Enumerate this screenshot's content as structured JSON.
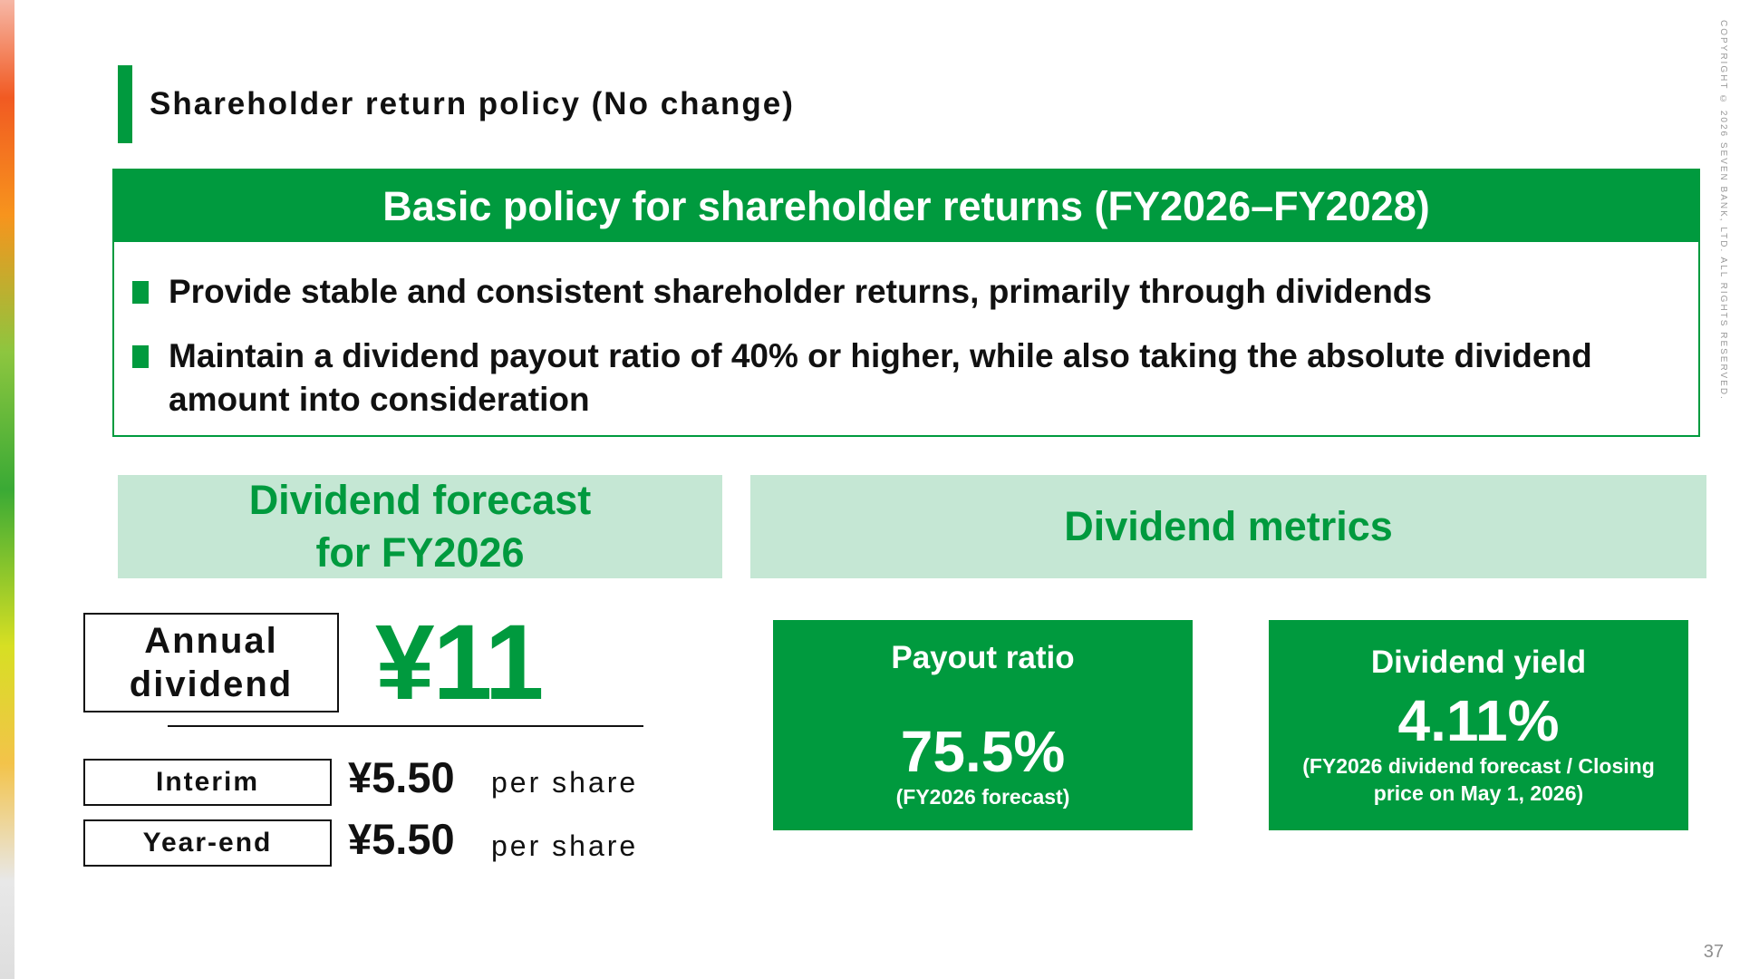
{
  "slide": {
    "section_title": "Shareholder return policy (No change)",
    "copyright": "COPYRIGHT © 2026 SEVEN BANK, LTD. ALL RIGHTS RESERVED.",
    "page_number": "37"
  },
  "policy": {
    "header": "Basic policy for shareholder returns (FY2026–FY2028)",
    "bullets": [
      "Provide stable and consistent shareholder returns, primarily through dividends",
      "Maintain a dividend payout ratio of 40% or higher, while also taking the absolute dividend amount into consideration"
    ]
  },
  "forecast": {
    "header": "Dividend forecast for FY2026",
    "annual_label": "Annual dividend",
    "annual_value": "¥11",
    "interim_label": "Interim",
    "interim_value": "¥5.50",
    "yearend_label": "Year-end",
    "yearend_value": "¥5.50",
    "per_share": "per share"
  },
  "metrics": {
    "header": "Dividend metrics",
    "payout": {
      "label": "Payout ratio",
      "value": "75.5%",
      "note": "(FY2026 forecast)"
    },
    "yield": {
      "label": "Dividend yield",
      "value": "4.11%",
      "note": "(FY2026 dividend forecast / Closing price on May 1, 2026)"
    }
  },
  "colors": {
    "brand_green": "#009a3e",
    "light_green": "#c5e7d4"
  }
}
